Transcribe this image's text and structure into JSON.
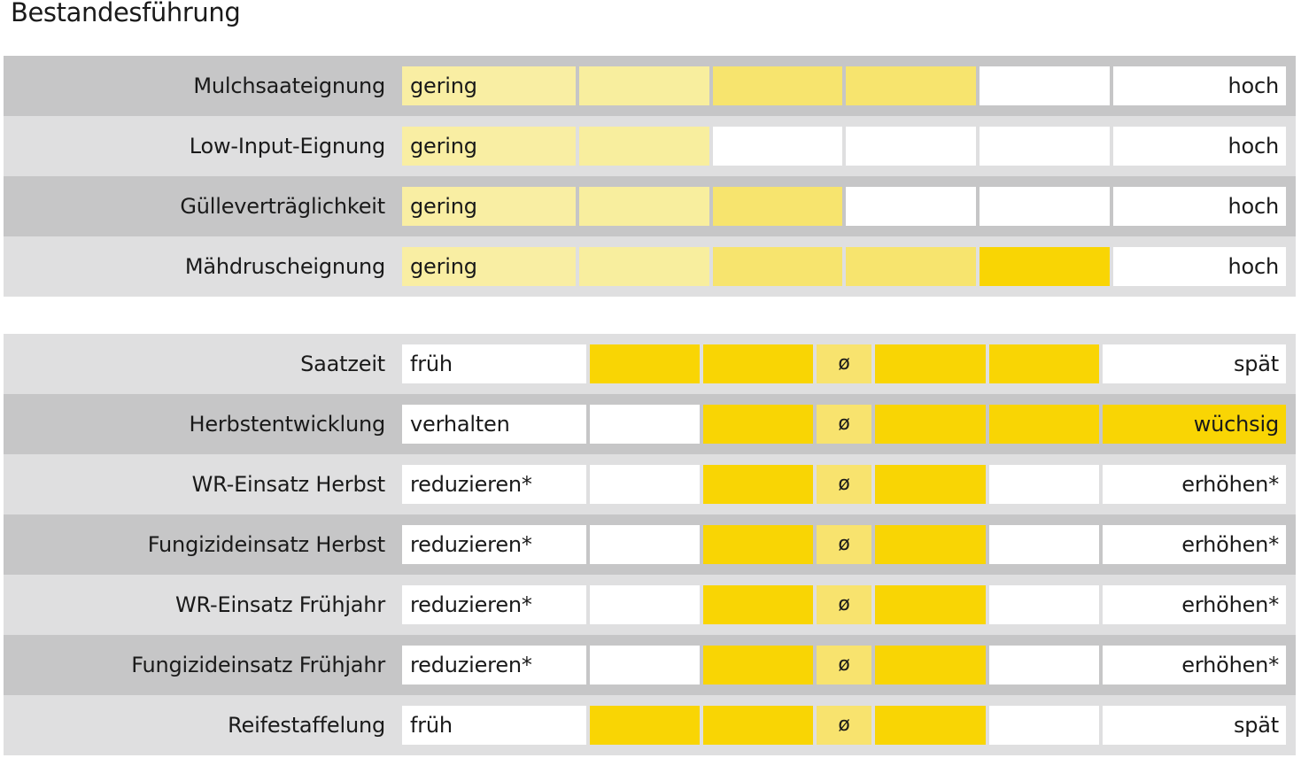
{
  "title": "Bestandesführung",
  "colors": {
    "empty": "#ffffff",
    "level1": "#f9eea3",
    "level2": "#f8ee9e",
    "level3": "#f7e46e",
    "level4": "#f7e46e",
    "level5": "#f9d504",
    "avg": "#f8e36e",
    "active": "#f9d504"
  },
  "section1": {
    "rows": [
      {
        "label": "Mulchsaateignung",
        "low": "gering",
        "high": "hoch",
        "filled": 4
      },
      {
        "label": "Low-Input-Eignung",
        "low": "gering",
        "high": "hoch",
        "filled": 2
      },
      {
        "label": "Gülleverträglichkeit",
        "low": "gering",
        "high": "hoch",
        "filled": 3
      },
      {
        "label": "Mähdruscheignung",
        "low": "gering",
        "high": "hoch",
        "filled": 5
      }
    ]
  },
  "section2": {
    "avg_symbol": "ø",
    "rows": [
      {
        "label": "Saatzeit",
        "low": "früh",
        "high": "spät",
        "active": [
          false,
          true,
          true,
          true,
          true,
          false
        ]
      },
      {
        "label": "Herbstentwicklung",
        "low": "verhalten",
        "high": "wüchsig",
        "active": [
          false,
          false,
          true,
          true,
          true,
          true
        ]
      },
      {
        "label": "WR-Einsatz Herbst",
        "low": "reduzieren*",
        "high": "erhöhen*",
        "active": [
          false,
          false,
          true,
          true,
          false,
          false
        ]
      },
      {
        "label": "Fungizideinsatz Herbst",
        "low": "reduzieren*",
        "high": "erhöhen*",
        "active": [
          false,
          false,
          true,
          true,
          false,
          false
        ]
      },
      {
        "label": "WR-Einsatz Frühjahr",
        "low": "reduzieren*",
        "high": "erhöhen*",
        "active": [
          false,
          false,
          true,
          true,
          false,
          false
        ]
      },
      {
        "label": "Fungizideinsatz Frühjahr",
        "low": "reduzieren*",
        "high": "erhöhen*",
        "active": [
          false,
          false,
          true,
          true,
          false,
          false
        ]
      },
      {
        "label": "Reifestaffelung",
        "low": "früh",
        "high": "spät",
        "active": [
          false,
          true,
          true,
          true,
          false,
          false
        ]
      }
    ]
  }
}
